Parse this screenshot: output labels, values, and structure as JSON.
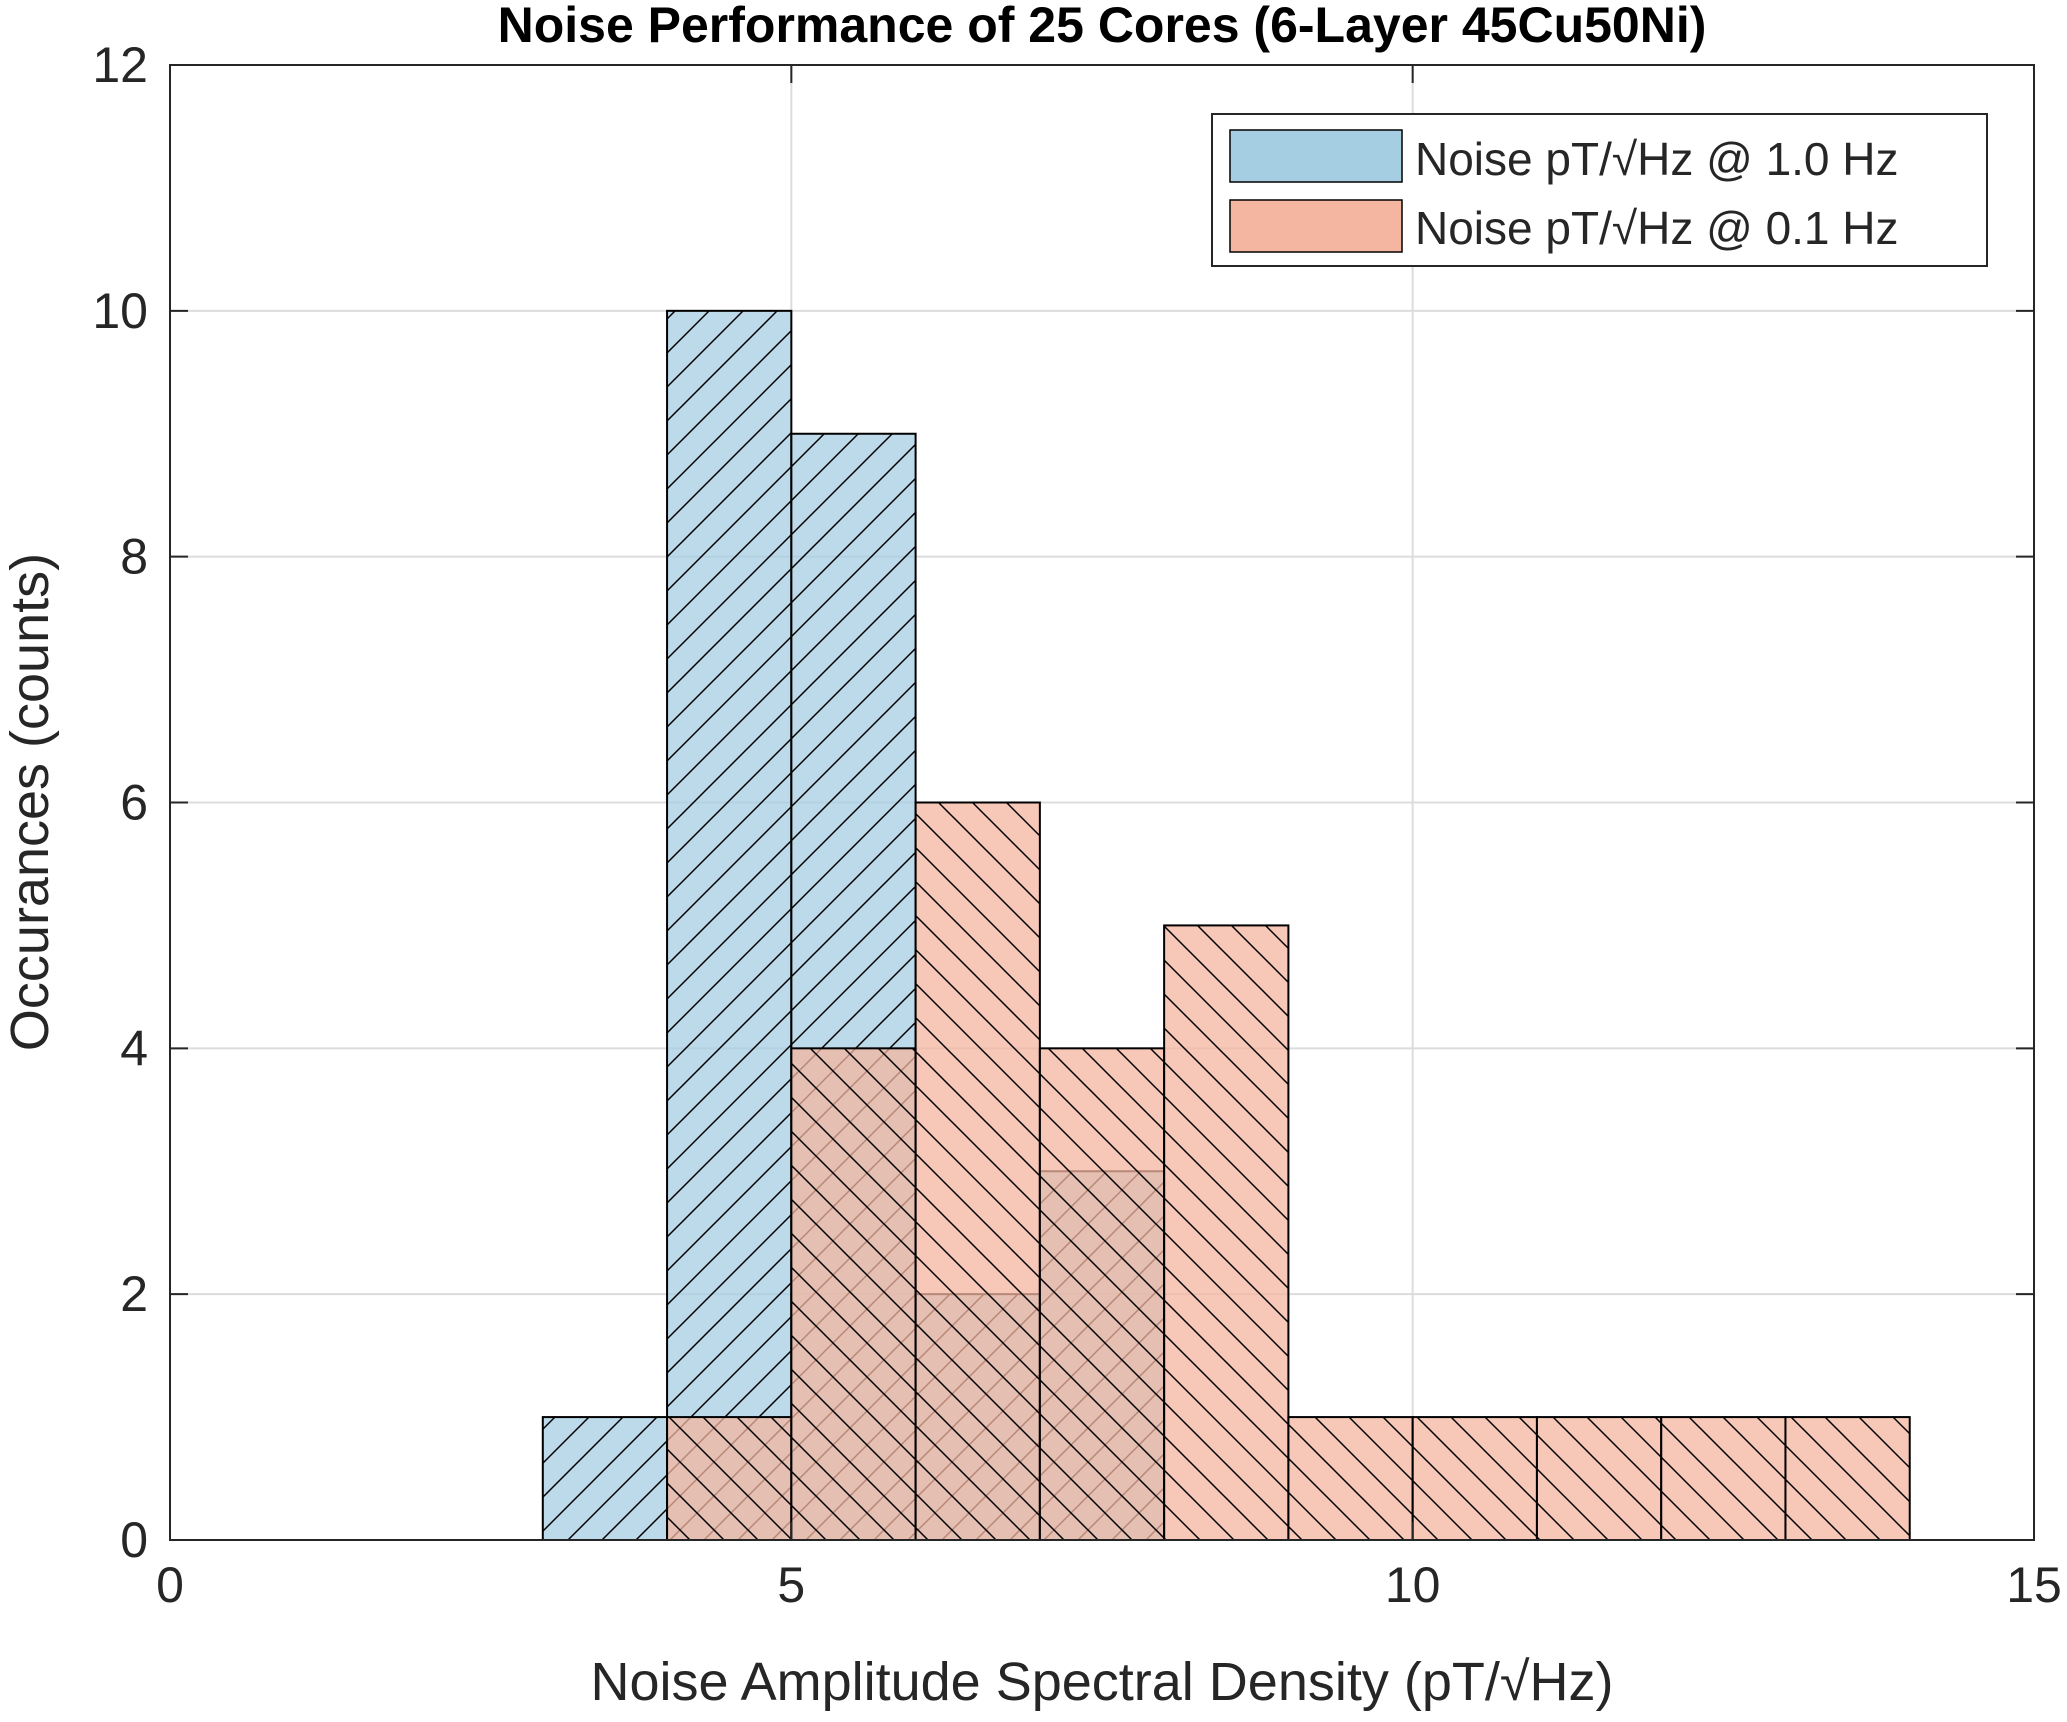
{
  "chart_data": {
    "type": "histogram",
    "title": "Noise Performance of 25 Cores (6-Layer 45Cu50Ni)",
    "xlabel": "Noise Amplitude Spectral Density (pT/√Hz)",
    "ylabel": "Occurances (counts)",
    "xlim": [
      0,
      15
    ],
    "ylim": [
      0,
      12
    ],
    "xticks": [
      0,
      5,
      10,
      15
    ],
    "yticks": [
      0,
      2,
      4,
      6,
      8,
      10,
      12
    ],
    "xtick_labels": [
      "0",
      "5",
      "10",
      "15"
    ],
    "ytick_labels": [
      "0",
      "2",
      "4",
      "6",
      "8",
      "10",
      "12"
    ],
    "grid": true,
    "legend_position": "top-right",
    "series": [
      {
        "name": "Noise pT/√Hz @ 1.0 Hz",
        "color": "#a6cee3",
        "hatch": "forward-diagonal",
        "bin_edges": [
          3,
          4,
          5,
          6,
          7,
          8
        ],
        "counts": [
          1,
          10,
          9,
          2,
          3
        ]
      },
      {
        "name": "Noise pT/√Hz @ 0.1 Hz",
        "color": "#f4b6a0",
        "hatch": "back-diagonal",
        "bin_edges": [
          4,
          5,
          6,
          7,
          8,
          9,
          10,
          11,
          12,
          13,
          14
        ],
        "counts": [
          1,
          4,
          6,
          4,
          5,
          1,
          1,
          1,
          1,
          1
        ]
      }
    ]
  }
}
